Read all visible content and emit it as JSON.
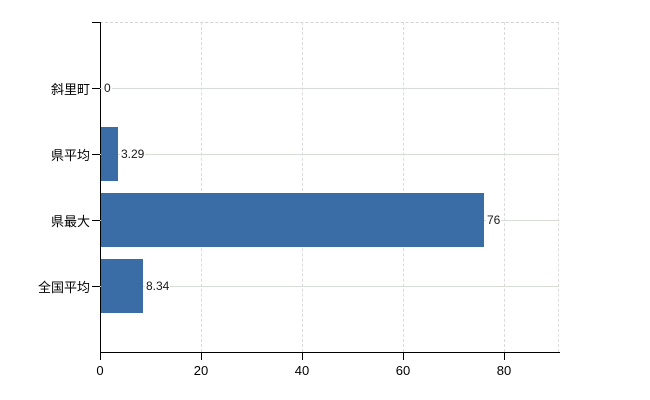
{
  "chart_data": {
    "type": "bar",
    "orientation": "horizontal",
    "title": "",
    "categories": [
      "斜里町",
      "県平均",
      "県最大",
      "全国平均"
    ],
    "values": [
      0,
      3.29,
      76,
      8.34
    ],
    "value_labels": [
      "0",
      "3.29",
      "76",
      "8.34"
    ],
    "x_ticks": [
      "0",
      "20",
      "40",
      "60",
      "80"
    ],
    "x_tick_values": [
      0,
      20,
      40,
      60,
      80
    ],
    "xlim": [
      0,
      91
    ],
    "legend": "none",
    "grid": {
      "horizontal": "solid",
      "vertical": "dashed"
    },
    "colors": {
      "bar": "#3a6ca5",
      "grid_horizontal": "#d6dcd6",
      "grid_vertical": "#dcdadc",
      "axis": "#000000",
      "value_label_text": "#1a1a1a",
      "tick_label_text": "#000000",
      "background": "#ffffff"
    }
  }
}
